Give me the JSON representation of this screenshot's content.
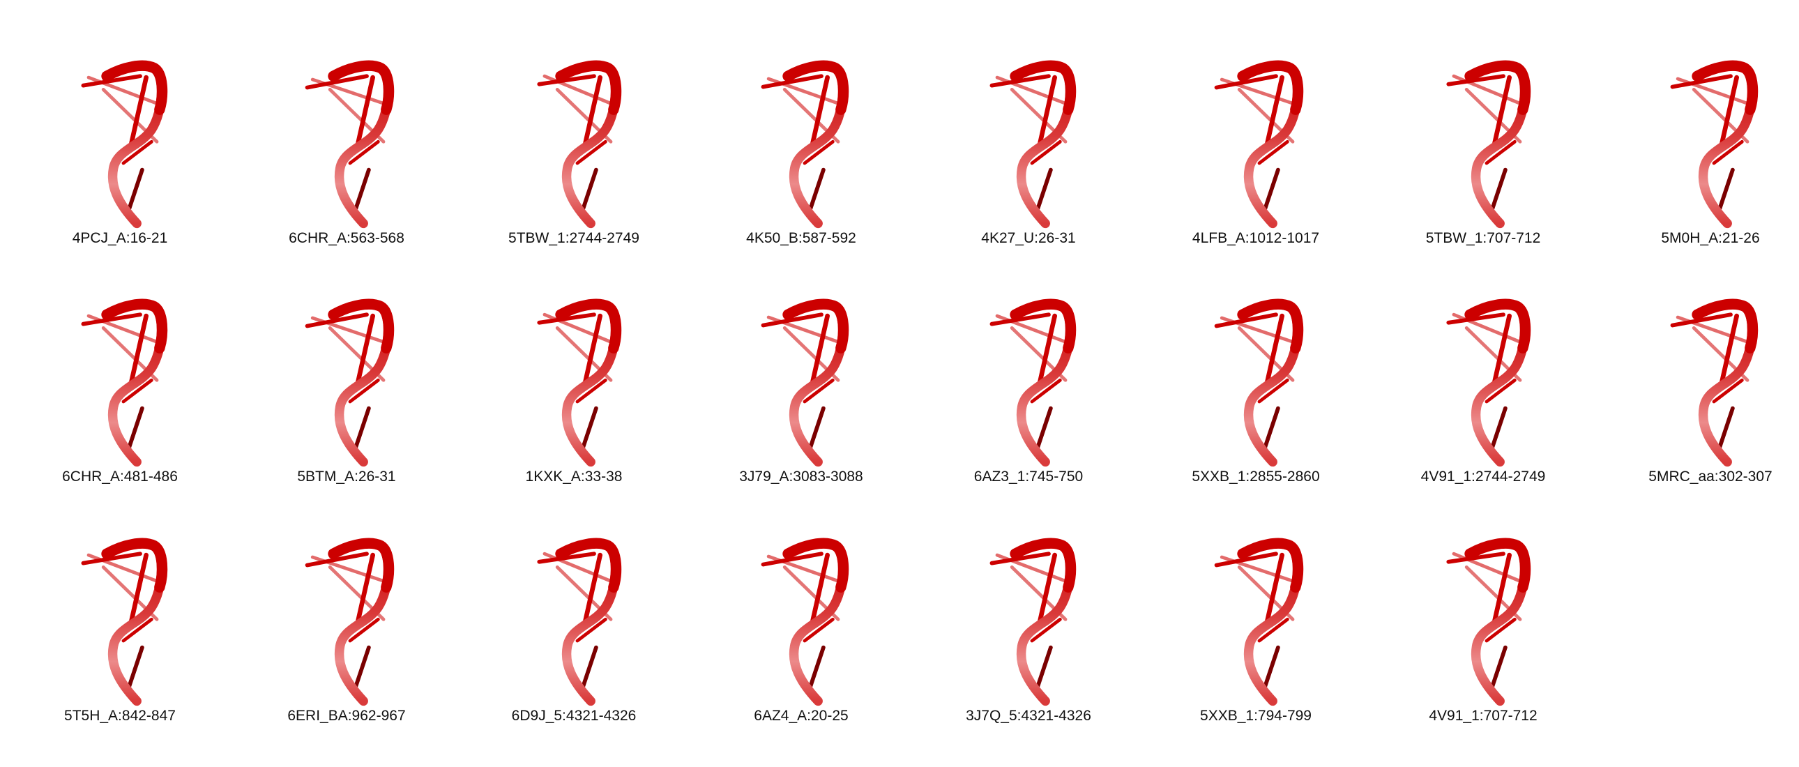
{
  "colors": {
    "backbone_dark": "#cc0000",
    "backbone_mid": "#d93a3a",
    "backbone_light": "#ec8a8a",
    "shadow": "#7a0000",
    "label_text": "#111111"
  },
  "rows": [
    {
      "items": [
        {
          "label": "4PCJ_A:16-21"
        },
        {
          "label": "6CHR_A:563-568"
        },
        {
          "label": "5TBW_1:2744-2749"
        },
        {
          "label": "4K50_B:587-592"
        },
        {
          "label": "4K27_U:26-31"
        },
        {
          "label": "4LFB_A:1012-1017"
        },
        {
          "label": "5TBW_1:707-712"
        },
        {
          "label": "5M0H_A:21-26"
        }
      ]
    },
    {
      "items": [
        {
          "label": "6CHR_A:481-486"
        },
        {
          "label": "5BTM_A:26-31"
        },
        {
          "label": "1KXK_A:33-38"
        },
        {
          "label": "3J79_A:3083-3088"
        },
        {
          "label": "6AZ3_1:745-750"
        },
        {
          "label": "5XXB_1:2855-2860"
        },
        {
          "label": "4V91_1:2744-2749"
        },
        {
          "label": "5MRC_aa:302-307"
        }
      ]
    },
    {
      "items": [
        {
          "label": "5T5H_A:842-847"
        },
        {
          "label": "6ERI_BA:962-967"
        },
        {
          "label": "6D9J_5:4321-4326"
        },
        {
          "label": "6AZ4_A:20-25"
        },
        {
          "label": "3J7Q_5:4321-4326"
        },
        {
          "label": "5XXB_1:794-799"
        },
        {
          "label": "4V91_1:707-712"
        }
      ]
    }
  ]
}
